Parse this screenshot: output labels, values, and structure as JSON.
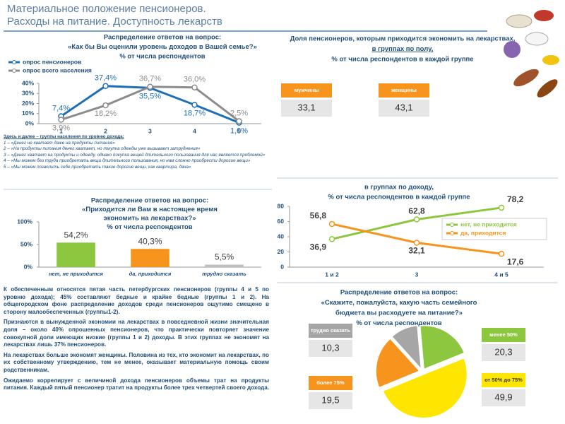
{
  "header": {
    "title": [
      "Материальное положение пенсионеров.",
      "Расходы на питание. Доступность лекарств"
    ]
  },
  "notes": {
    "heading": "Здесь и далее – группы населения по уровню дохода:",
    "items": [
      "1 – «Денег не хватает даже на продукты питания»",
      "2 – «На продукты питания денег хватает, но покупка одежды уже вызывает затруднения»",
      "3 – «Денег хватает на продукты и одежду, однако покупка вещей длительного пользования для нас является проблемой»",
      "4 – «Мы можем без труда приобретать вещи длительного пользования, но нам сложно приобрести дорогие вещи»",
      "5 – «Мы можем позволить себе приобретать такие дорогие вещи, как квартира, дача»"
    ]
  },
  "text": {
    "paragraphs": [
      "К обеспеченным относятся пятая часть петербургских пенсионеров (группы 4 и 5 по уровню дохода); 45% составляют бедные и крайне бедные (группы 1 и 2). На общегородском фоне распределение доходов среди пенсионеров ощутимо смещено в сторону малообеспеченных (группы1-2).",
      "Признаются в вынужденной экономии на лекарствах в повседневной жизни значительная доля – около 40% опрошенных пенсионеров, что практически повторяет значение совокупной доли имеющих низкие (группы 1 и 2) доходы. В этих группах не экономят на лекарствах лишь 37% пенсионеров.",
      "На лекарствах больше экономят женщины. Половина из тех, кто экономит на лекарствах, по их собственному утверждению, тем не менее, оказывает материальную помощь своим родственникам.",
      "Ожидаемо коррелирует с величиной дохода пенсионеров объемы трат на продукты питания. Каждый пятый пенсионер тратит на продукты более трех четвертей своего дохода."
    ]
  },
  "chart_data": [
    {
      "type": "line",
      "title": [
        "Распределение ответов на вопрос:",
        "«Как бы Вы оценили уровень доходов в Вашей семье?»",
        "% от числа респондентов"
      ],
      "categories": [
        "1",
        "2",
        "3",
        "4",
        "5"
      ],
      "series": [
        {
          "name": "опрос пенсионеров",
          "color": "#1f6fb5",
          "values": [
            7.4,
            37.4,
            35.5,
            18.7,
            1.0
          ],
          "value_labels": [
            "7,4%",
            "37,4%",
            "35,5%",
            "18,7%",
            "1,0%"
          ]
        },
        {
          "name": "опрос всего населения",
          "color": "#8c8c8c",
          "values": [
            3.9,
            18.2,
            36.7,
            36.0,
            2.5
          ],
          "value_labels": [
            "3,9%",
            "18,2%",
            "36,7%",
            "36,0%",
            "2,5%"
          ]
        }
      ],
      "ylim": [
        0,
        40
      ],
      "yticks": [
        {
          "value": 0,
          "label": "0%"
        },
        {
          "value": 10,
          "label": "10%"
        },
        {
          "value": 20,
          "label": "20%"
        },
        {
          "value": 30,
          "label": "30%"
        },
        {
          "value": 40,
          "label": "40%"
        }
      ],
      "legend": "upper left"
    },
    {
      "type": "tiles",
      "title": [
        "Доля пенсионеров, которым приходится экономить на лекарствах,",
        "в группах по полу,",
        "% от числа респондентов в каждой группе"
      ],
      "categories": [
        "мужчины",
        "женщины"
      ],
      "values": [
        33.1,
        43.1
      ],
      "value_labels": [
        "33,1",
        "43,1"
      ],
      "color": "#f7941d"
    },
    {
      "type": "line",
      "title": [
        "в группах по доходу,",
        "% от числа респондентов в каждой группе"
      ],
      "categories": [
        "1 и 2",
        "3",
        "4 и 5"
      ],
      "series": [
        {
          "name": "нет, не приходится",
          "color": "#8dc63f",
          "values": [
            36.9,
            62.8,
            78.2
          ],
          "value_labels": [
            "36,9",
            "62,8",
            "78,2"
          ]
        },
        {
          "name": "да, приходится",
          "color": "#f7941d",
          "values": [
            56.8,
            32.1,
            17.6
          ],
          "value_labels": [
            "56,8",
            "32,1",
            "17,6"
          ]
        }
      ],
      "ylim": [
        0,
        80
      ],
      "yticks": [
        0,
        20,
        40,
        60,
        80
      ],
      "legend": "right"
    },
    {
      "type": "bar",
      "title": [
        "Распределение ответов на вопрос:",
        "«Приходится ли Вам в настоящее время",
        "экономить на лекарствах?»",
        "% от числа респондентов"
      ],
      "categories": [
        "нет, не приходится",
        "да, приходится",
        "трудно сказать"
      ],
      "values": [
        54.2,
        40.3,
        5.5
      ],
      "value_labels": [
        "54,2%",
        "40,3%",
        "5,5%"
      ],
      "colors": [
        "#8dc63f",
        "#f7941d",
        "#bfbfbf"
      ],
      "ylim": [
        0,
        100
      ],
      "yticks": [
        {
          "value": 0,
          "label": "0%"
        },
        {
          "value": 50,
          "label": "50%"
        },
        {
          "value": 100,
          "label": "100%"
        }
      ]
    },
    {
      "type": "pie",
      "title": [
        "Распределение ответов на вопрос:",
        "«Скажите, пожалуйста, какую часть семейного",
        "бюджета вы расходуете на питание?»",
        "% от числа респондентов"
      ],
      "categories": [
        "менее 50%",
        "от 50% до 75%",
        "более 75%",
        "трудно сказать"
      ],
      "values": [
        20.3,
        49.9,
        19.5,
        10.3
      ],
      "value_labels": [
        "20,3",
        "49,9",
        "19,5",
        "10,3"
      ],
      "colors": [
        "#8dc63f",
        "#ffe600",
        "#f7941d",
        "#a6a6a6"
      ]
    }
  ]
}
